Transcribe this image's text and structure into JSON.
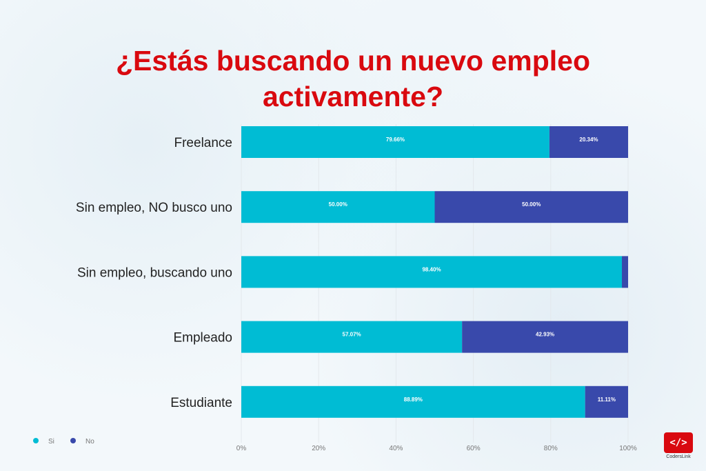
{
  "title": "¿Estás buscando un nuevo empleo activamente?",
  "title_lines": [
    "¿Estás buscando un nuevo empleo",
    "activamente?"
  ],
  "logo": {
    "text": "CodersLink",
    "icon": "code-brackets-icon"
  },
  "chart_data": {
    "type": "bar",
    "orientation": "horizontal",
    "stacked": "percent",
    "title": "¿Estás buscando un nuevo empleo activamente?",
    "categories": [
      "Freelance",
      "Sin empleo, NO busco uno",
      "Sin empleo, buscando uno",
      "Empleado",
      "Estudiante"
    ],
    "series": [
      {
        "name": "Si",
        "color": "#00bcd4",
        "values": [
          79.66,
          50.0,
          98.4,
          57.07,
          88.89
        ],
        "labels": [
          "79.66%",
          "50.00%",
          "98.40%",
          "57.07%",
          "88.89%"
        ]
      },
      {
        "name": "No",
        "color": "#3949ab",
        "values": [
          20.34,
          50.0,
          1.6,
          42.93,
          11.11
        ],
        "labels": [
          "20.34%",
          "50.00%",
          "",
          "42.93%",
          "11.11%"
        ]
      }
    ],
    "xlim": [
      0,
      100
    ],
    "xticks": [
      "0%",
      "20%",
      "40%",
      "60%",
      "80%",
      "100%"
    ],
    "grid": true,
    "legend": "bottom-left"
  }
}
